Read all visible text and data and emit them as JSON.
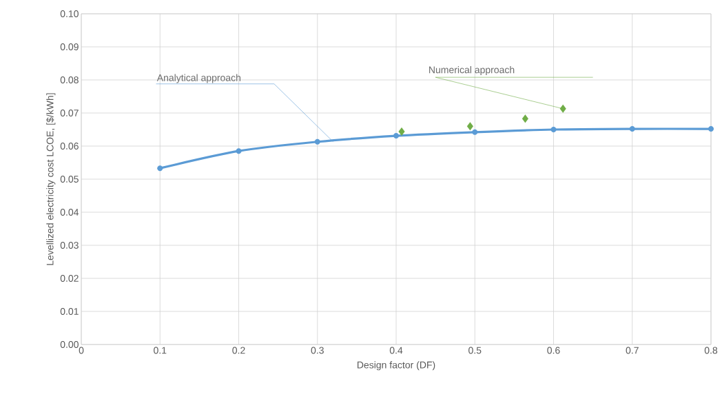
{
  "chart_data": {
    "type": "line",
    "xlabel": "Design factor (DF)",
    "ylabel": "Levellized electricity cost LCOE, [$/kWh]",
    "xlim": [
      0,
      0.8
    ],
    "ylim": [
      0,
      0.1
    ],
    "xticks": [
      0,
      0.1,
      0.2,
      0.3,
      0.4,
      0.5,
      0.6,
      0.7,
      0.8
    ],
    "yticks": [
      {
        "value": 0,
        "label": "0.00"
      },
      {
        "value": 0.01,
        "label": "0.01"
      },
      {
        "value": 0.02,
        "label": "0.02"
      },
      {
        "value": 0.03,
        "label": "0.03"
      },
      {
        "value": 0.04,
        "label": "0.04"
      },
      {
        "value": 0.05,
        "label": "0.05"
      },
      {
        "value": 0.06,
        "label": "0.06"
      },
      {
        "value": 0.07,
        "label": "0.07"
      },
      {
        "value": 0.08,
        "label": "0.08"
      },
      {
        "value": 0.09,
        "label": "0.09"
      },
      {
        "value": 0.1,
        "label": "0.10"
      }
    ],
    "grid": true,
    "series": [
      {
        "name": "Analytical approach",
        "marker": "circle",
        "color": "#5b9bd5",
        "x": [
          0.1,
          0.2,
          0.3,
          0.4,
          0.5,
          0.6,
          0.7,
          0.8
        ],
        "values": [
          0.0533,
          0.0585,
          0.0613,
          0.0631,
          0.0642,
          0.065,
          0.0652,
          0.0652
        ]
      },
      {
        "name": "Numerical approach",
        "type": "scatter",
        "marker": "diamond",
        "color": "#70ad47",
        "x": [
          0.407,
          0.494,
          0.564,
          0.612
        ],
        "values": [
          0.0644,
          0.066,
          0.0683,
          0.0713
        ]
      }
    ]
  }
}
